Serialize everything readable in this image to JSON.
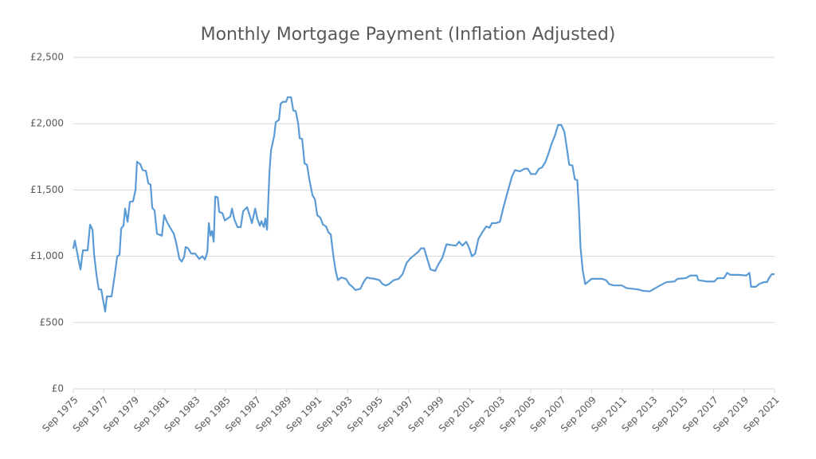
{
  "chart_data": {
    "type": "line",
    "title": "Monthly Mortgage Payment (Inflation Adjusted)",
    "series": [
      {
        "color": "#5b9bd5",
        "x": [
          1975.67,
          1975.77,
          1976.14,
          1976.3,
          1976.61,
          1976.77,
          1976.93,
          1977.03,
          1977.19,
          1977.34,
          1977.5,
          1977.76,
          1977.87,
          1978.18,
          1978.39,
          1978.55,
          1978.7,
          1978.81,
          1978.96,
          1979.07,
          1979.23,
          1979.38,
          1979.59,
          1979.75,
          1979.85,
          1980.06,
          1980.22,
          1980.43,
          1980.59,
          1980.74,
          1980.85,
          1981.0,
          1981.16,
          1981.48,
          1981.63,
          1981.79,
          1982.0,
          1982.26,
          1982.42,
          1982.63,
          1982.78,
          1982.94,
          1983.04,
          1983.2,
          1983.41,
          1983.67,
          1983.93,
          1984.14,
          1984.3,
          1984.46,
          1984.56,
          1984.67,
          1984.77,
          1984.88,
          1984.98,
          1985.14,
          1985.24,
          1985.45,
          1985.61,
          1985.97,
          1986.08,
          1986.23,
          1986.44,
          1986.65,
          1986.81,
          1987.07,
          1987.23,
          1987.39,
          1987.6,
          1987.75,
          1987.91,
          1988.01,
          1988.17,
          1988.27,
          1988.38,
          1988.54,
          1988.64,
          1988.85,
          1988.95,
          1989.16,
          1989.27,
          1989.42,
          1989.63,
          1989.74,
          1989.95,
          1990.1,
          1990.26,
          1990.42,
          1990.52,
          1990.68,
          1990.84,
          1991.0,
          1991.15,
          1991.36,
          1991.52,
          1991.67,
          1991.88,
          1992.04,
          1992.25,
          1992.41,
          1992.56,
          1992.72,
          1992.88,
          1993.03,
          1993.24,
          1993.56,
          1993.77,
          1993.98,
          1994.18,
          1994.5,
          1994.71,
          1994.92,
          1995.13,
          1995.44,
          1995.75,
          1995.96,
          1996.17,
          1996.38,
          1996.69,
          1997.01,
          1997.27,
          1997.53,
          1997.79,
          1998.05,
          1998.31,
          1998.47,
          1998.68,
          1998.89,
          1999.1,
          1999.41,
          1999.62,
          1999.88,
          2000.15,
          2000.46,
          2000.77,
          2000.98,
          2001.19,
          2001.45,
          2001.61,
          2001.82,
          2002.03,
          2002.24,
          2002.55,
          2002.76,
          2002.97,
          2003.13,
          2003.39,
          2003.65,
          2003.91,
          2004.17,
          2004.44,
          2004.64,
          2004.96,
          2005.27,
          2005.48,
          2005.69,
          2006.0,
          2006.21,
          2006.42,
          2006.63,
          2006.84,
          2007.05,
          2007.26,
          2007.47,
          2007.68,
          2007.88,
          2008.04,
          2008.2,
          2008.41,
          2008.57,
          2008.73,
          2008.83,
          2008.94,
          2009.09,
          2009.25,
          2009.46,
          2009.67,
          2010.35,
          2010.61,
          2010.82,
          2011.13,
          2011.65,
          2011.97,
          2012.7,
          2013.01,
          2013.48,
          2013.85,
          2014.16,
          2014.58,
          2015.1,
          2015.31,
          2015.84,
          2016.15,
          2016.57,
          2016.67,
          2017.2,
          2017.72,
          2017.93,
          2018.35,
          2018.56,
          2018.77,
          2019.29,
          2019.81,
          2020.02,
          2020.13,
          2020.44,
          2020.65,
          2020.96,
          2021.17,
          2021.33,
          2021.49,
          2021.67
        ],
        "values": [
          1057,
          1118,
          900,
          1045,
          1045,
          1238,
          1200,
          1020,
          860,
          750,
          750,
          583,
          697,
          697,
          860,
          1000,
          1010,
          1210,
          1230,
          1360,
          1260,
          1410,
          1415,
          1500,
          1713,
          1695,
          1650,
          1645,
          1550,
          1540,
          1365,
          1345,
          1170,
          1155,
          1310,
          1265,
          1220,
          1170,
          1100,
          980,
          960,
          995,
          1070,
          1060,
          1020,
          1020,
          980,
          1000,
          975,
          1030,
          1250,
          1155,
          1190,
          1110,
          1450,
          1445,
          1335,
          1325,
          1270,
          1300,
          1360,
          1280,
          1220,
          1220,
          1340,
          1370,
          1310,
          1250,
          1360,
          1280,
          1230,
          1265,
          1220,
          1285,
          1200,
          1640,
          1800,
          1910,
          2010,
          2030,
          2150,
          2165,
          2165,
          2200,
          2200,
          2100,
          2095,
          2000,
          1890,
          1885,
          1700,
          1690,
          1580,
          1460,
          1430,
          1310,
          1290,
          1240,
          1225,
          1180,
          1165,
          1010,
          890,
          820,
          840,
          830,
          790,
          770,
          745,
          755,
          805,
          840,
          835,
          830,
          820,
          790,
          780,
          790,
          820,
          830,
          865,
          950,
          985,
          1010,
          1035,
          1060,
          1060,
          980,
          900,
          890,
          940,
          990,
          1090,
          1085,
          1080,
          1110,
          1080,
          1110,
          1070,
          1000,
          1020,
          1130,
          1190,
          1225,
          1215,
          1250,
          1250,
          1260,
          1380,
          1490,
          1600,
          1650,
          1640,
          1660,
          1660,
          1620,
          1620,
          1660,
          1670,
          1710,
          1775,
          1850,
          1910,
          1990,
          1990,
          1940,
          1820,
          1690,
          1685,
          1580,
          1575,
          1370,
          1070,
          890,
          790,
          810,
          830,
          830,
          820,
          790,
          780,
          780,
          760,
          750,
          740,
          735,
          760,
          780,
          805,
          810,
          830,
          835,
          855,
          855,
          820,
          810,
          810,
          835,
          835,
          875,
          860,
          860,
          855,
          875,
          770,
          770,
          790,
          805,
          805,
          840,
          865,
          865
        ]
      }
    ],
    "xlim": [
      1975.67,
      2021.67
    ],
    "xticks": [
      {
        "value": 1975.67,
        "label": "Sep 1975"
      },
      {
        "value": 1977.67,
        "label": "Sep 1977"
      },
      {
        "value": 1979.67,
        "label": "Sep 1979"
      },
      {
        "value": 1981.67,
        "label": "Sep 1981"
      },
      {
        "value": 1983.67,
        "label": "Sep 1983"
      },
      {
        "value": 1985.67,
        "label": "Sep 1985"
      },
      {
        "value": 1987.67,
        "label": "Sep 1987"
      },
      {
        "value": 1989.67,
        "label": "Sep 1989"
      },
      {
        "value": 1991.67,
        "label": "Sep 1991"
      },
      {
        "value": 1993.67,
        "label": "Sep 1993"
      },
      {
        "value": 1995.67,
        "label": "Sep 1995"
      },
      {
        "value": 1997.67,
        "label": "Sep 1997"
      },
      {
        "value": 1999.67,
        "label": "Sep 1999"
      },
      {
        "value": 2001.67,
        "label": "Sep 2001"
      },
      {
        "value": 2003.67,
        "label": "Sep 2003"
      },
      {
        "value": 2005.67,
        "label": "Sep 2005"
      },
      {
        "value": 2007.67,
        "label": "Sep 2007"
      },
      {
        "value": 2009.67,
        "label": "Sep 2009"
      },
      {
        "value": 2011.67,
        "label": "Sep 2011"
      },
      {
        "value": 2013.67,
        "label": "Sep 2013"
      },
      {
        "value": 2015.67,
        "label": "Sep 2015"
      },
      {
        "value": 2017.67,
        "label": "Sep 2017"
      },
      {
        "value": 2019.67,
        "label": "Sep 2019"
      },
      {
        "value": 2021.67,
        "label": "Sep 2021"
      }
    ],
    "ylim": [
      0,
      2500
    ],
    "yticks": [
      {
        "value": 0,
        "label": "£0"
      },
      {
        "value": 500,
        "label": "£500"
      },
      {
        "value": 1000,
        "label": "£1,000"
      },
      {
        "value": 1500,
        "label": "£1,500"
      },
      {
        "value": 2000,
        "label": "£2,000"
      },
      {
        "value": 2500,
        "label": "£2,500"
      }
    ],
    "grid": true
  }
}
